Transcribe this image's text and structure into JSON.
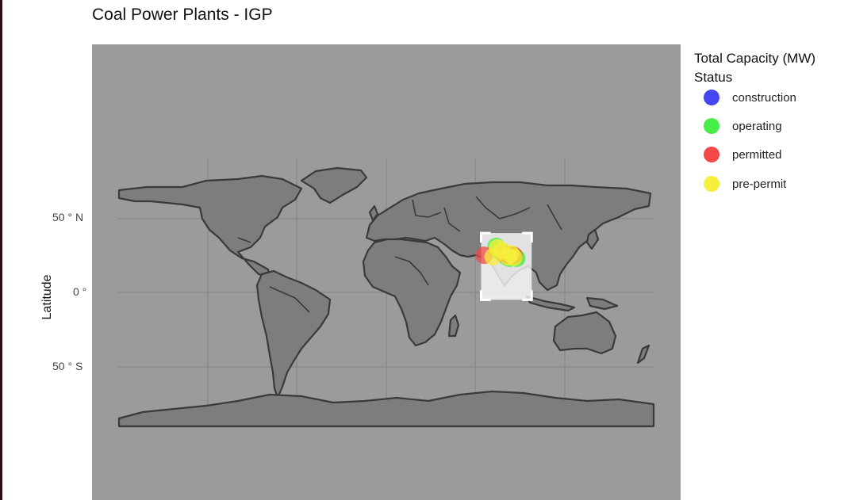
{
  "page": {
    "title": "Coal Power Plants - IGP"
  },
  "colors": {
    "panel": "#9b9b9b",
    "land": "#7d7d7d",
    "border": "#3a3a3a",
    "grid": "#8a8a8a",
    "highlight": "#ffffff"
  },
  "chart_data": {
    "type": "scatter",
    "title": "Coal Power Plants - IGP",
    "xlabel": "",
    "ylabel": "Latitude",
    "y_ticks": [
      "50 ° N",
      "0 °",
      "50 ° S"
    ],
    "legend": {
      "title": "Total Capacity (MW)\nStatus",
      "position": "right",
      "items": [
        {
          "name": "construction",
          "color": "#4646f0"
        },
        {
          "name": "operating",
          "color": "#48ee48"
        },
        {
          "name": "permitted",
          "color": "#f24848"
        },
        {
          "name": "pre-permit",
          "color": "#f5f03a"
        }
      ]
    },
    "series": [
      {
        "name": "operating",
        "color": "#48ee48",
        "points": [
          {
            "lon": 74,
            "lat": 31
          },
          {
            "lon": 76,
            "lat": 28
          },
          {
            "lon": 78,
            "lat": 27
          },
          {
            "lon": 80,
            "lat": 26
          },
          {
            "lon": 82,
            "lat": 25.5
          },
          {
            "lon": 84,
            "lat": 25
          },
          {
            "lon": 85,
            "lat": 24
          },
          {
            "lon": 86,
            "lat": 23.5
          },
          {
            "lon": 87,
            "lat": 24
          },
          {
            "lon": 83,
            "lat": 23
          },
          {
            "lon": 81,
            "lat": 24
          },
          {
            "lon": 88,
            "lat": 23
          }
        ]
      },
      {
        "name": "permitted",
        "color": "#f24848",
        "points": [
          {
            "lon": 66,
            "lat": 25
          },
          {
            "lon": 79,
            "lat": 26
          },
          {
            "lon": 82,
            "lat": 25
          },
          {
            "lon": 86,
            "lat": 25
          }
        ]
      },
      {
        "name": "pre-permit",
        "color": "#f5f03a",
        "points": [
          {
            "lon": 72,
            "lat": 24
          },
          {
            "lon": 75,
            "lat": 30
          },
          {
            "lon": 78,
            "lat": 28
          },
          {
            "lon": 82,
            "lat": 24
          },
          {
            "lon": 86,
            "lat": 23.5
          },
          {
            "lon": 84,
            "lat": 26
          }
        ]
      }
    ],
    "highlight_box": {
      "lon": [
        64,
        98
      ],
      "lat": [
        -5,
        40
      ]
    }
  }
}
